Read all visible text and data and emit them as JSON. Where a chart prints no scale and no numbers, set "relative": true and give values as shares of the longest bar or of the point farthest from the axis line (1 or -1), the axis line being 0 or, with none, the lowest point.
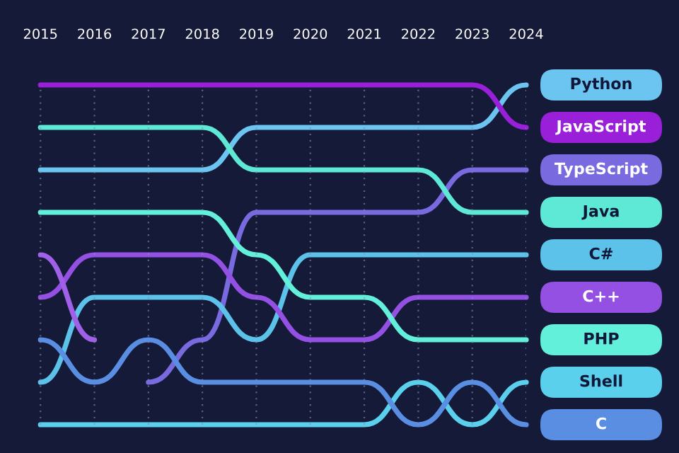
{
  "chart_data": {
    "type": "line",
    "relative": true,
    "x": [
      2015,
      2016,
      2017,
      2018,
      2019,
      2020,
      2021,
      2022,
      2023,
      2024
    ],
    "xlim": [
      2014.25,
      2024
    ],
    "xticks": [
      2015,
      2016,
      2017,
      2018,
      2019,
      2020,
      2021,
      2022,
      2023,
      2024
    ],
    "grid": "x",
    "tick_labels": "x",
    "series": [
      {
        "name": "Python",
        "color": "#6cc4f0",
        "values": [
          0.75,
          0.75,
          0.75,
          0.75,
          0.875,
          0.875,
          0.875,
          0.875,
          0.875,
          1
        ]
      },
      {
        "name": "JavaScript",
        "color": "#9a1fd8",
        "values": [
          1,
          1,
          1,
          1,
          1,
          1,
          1,
          1,
          1,
          0.875
        ]
      },
      {
        "name": "TypeScript",
        "color": "#7a6ae0",
        "values": [
          null,
          null,
          0.125,
          0.25,
          0.625,
          0.625,
          0.625,
          0.625,
          0.75,
          0.75
        ]
      },
      {
        "name": "Java",
        "color": "#5ee8d6",
        "values": [
          0.875,
          0.875,
          0.875,
          0.875,
          0.75,
          0.75,
          0.75,
          0.75,
          0.625,
          0.625
        ]
      },
      {
        "name": "C#",
        "color": "#5cc2ea",
        "values": [
          0.125,
          0.375,
          0.375,
          0.375,
          0.25,
          0.5,
          0.5,
          0.5,
          0.5,
          0.5
        ]
      },
      {
        "name": "C++",
        "color": "#9450e2",
        "values": [
          0.375,
          0.5,
          0.5,
          0.5,
          0.375,
          0.25,
          0.25,
          0.375,
          0.375,
          0.375
        ]
      },
      {
        "name": "PHP",
        "color": "#62f0da",
        "values": [
          0.625,
          0.625,
          0.625,
          0.625,
          0.5,
          0.375,
          0.375,
          0.25,
          0.25,
          0.25
        ]
      },
      {
        "name": "Shell",
        "color": "#5ad0ec",
        "values": [
          0,
          0,
          0,
          0,
          0,
          0,
          0,
          0.125,
          0,
          0.125
        ]
      },
      {
        "name": "C",
        "color": "#5a8ee2",
        "values": [
          0.25,
          0.125,
          0.25,
          0.125,
          0.125,
          0.125,
          0.125,
          0,
          0.125,
          0
        ]
      },
      {
        "color": "#a060e8",
        "values": [
          0.5,
          0.25,
          null,
          null,
          null,
          null,
          null,
          null,
          null,
          null
        ]
      }
    ]
  }
}
